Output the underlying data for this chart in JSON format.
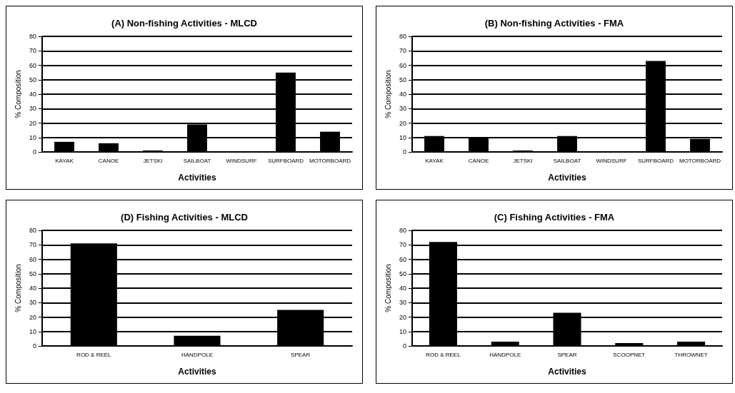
{
  "chart_data": [
    {
      "type": "bar",
      "title": "(A) Non-fishing Activities - MLCD",
      "xlabel": "Activities",
      "ylabel": "% Composition",
      "categories": [
        "KAYAK",
        "CANOE",
        "JETSKI",
        "SAILBOAT",
        "WINDSURF",
        "SURFBOARD",
        "MOTORBOARD"
      ],
      "values": [
        7,
        6,
        1,
        19,
        0,
        55,
        14
      ],
      "color": "#000000",
      "ylim": [
        0,
        80
      ],
      "yticks": [
        0,
        10,
        20,
        30,
        40,
        50,
        60,
        70,
        80
      ],
      "grid": "y"
    },
    {
      "type": "bar",
      "title": "(B) Non-fishing Activities - FMA",
      "xlabel": "Activities",
      "ylabel": "% Composition",
      "categories": [
        "KAYAK",
        "CANOE",
        "JETSKI",
        "SAILBOAT",
        "WINDSURF",
        "SURFBOARD",
        "MOTORBOARD"
      ],
      "values": [
        11,
        10,
        1,
        11,
        0,
        63,
        9
      ],
      "color": "#000000",
      "ylim": [
        0,
        80
      ],
      "yticks": [
        0,
        10,
        20,
        30,
        40,
        50,
        60,
        70,
        80
      ],
      "grid": "y"
    },
    {
      "type": "bar",
      "title": "(D) Fishing Activities - MLCD",
      "xlabel": "Activities",
      "ylabel": "% Composition",
      "categories": [
        "ROD & REEL",
        "HANDPOLE",
        "SPEAR"
      ],
      "values": [
        71,
        7,
        25
      ],
      "color": "#000000",
      "ylim": [
        0,
        80
      ],
      "yticks": [
        0,
        10,
        20,
        30,
        40,
        50,
        60,
        70,
        80
      ],
      "grid": "y"
    },
    {
      "type": "bar",
      "title": "(C) Fishing Activities - FMA",
      "xlabel": "Activities",
      "ylabel": "% Composition",
      "categories": [
        "ROD & REEL",
        "HANDPOLE",
        "SPEAR",
        "SCOOPNET",
        "THROWNET"
      ],
      "values": [
        72,
        3,
        23,
        2,
        3
      ],
      "color": "#000000",
      "ylim": [
        0,
        80
      ],
      "yticks": [
        0,
        10,
        20,
        30,
        40,
        50,
        60,
        70,
        80
      ],
      "grid": "y"
    }
  ]
}
